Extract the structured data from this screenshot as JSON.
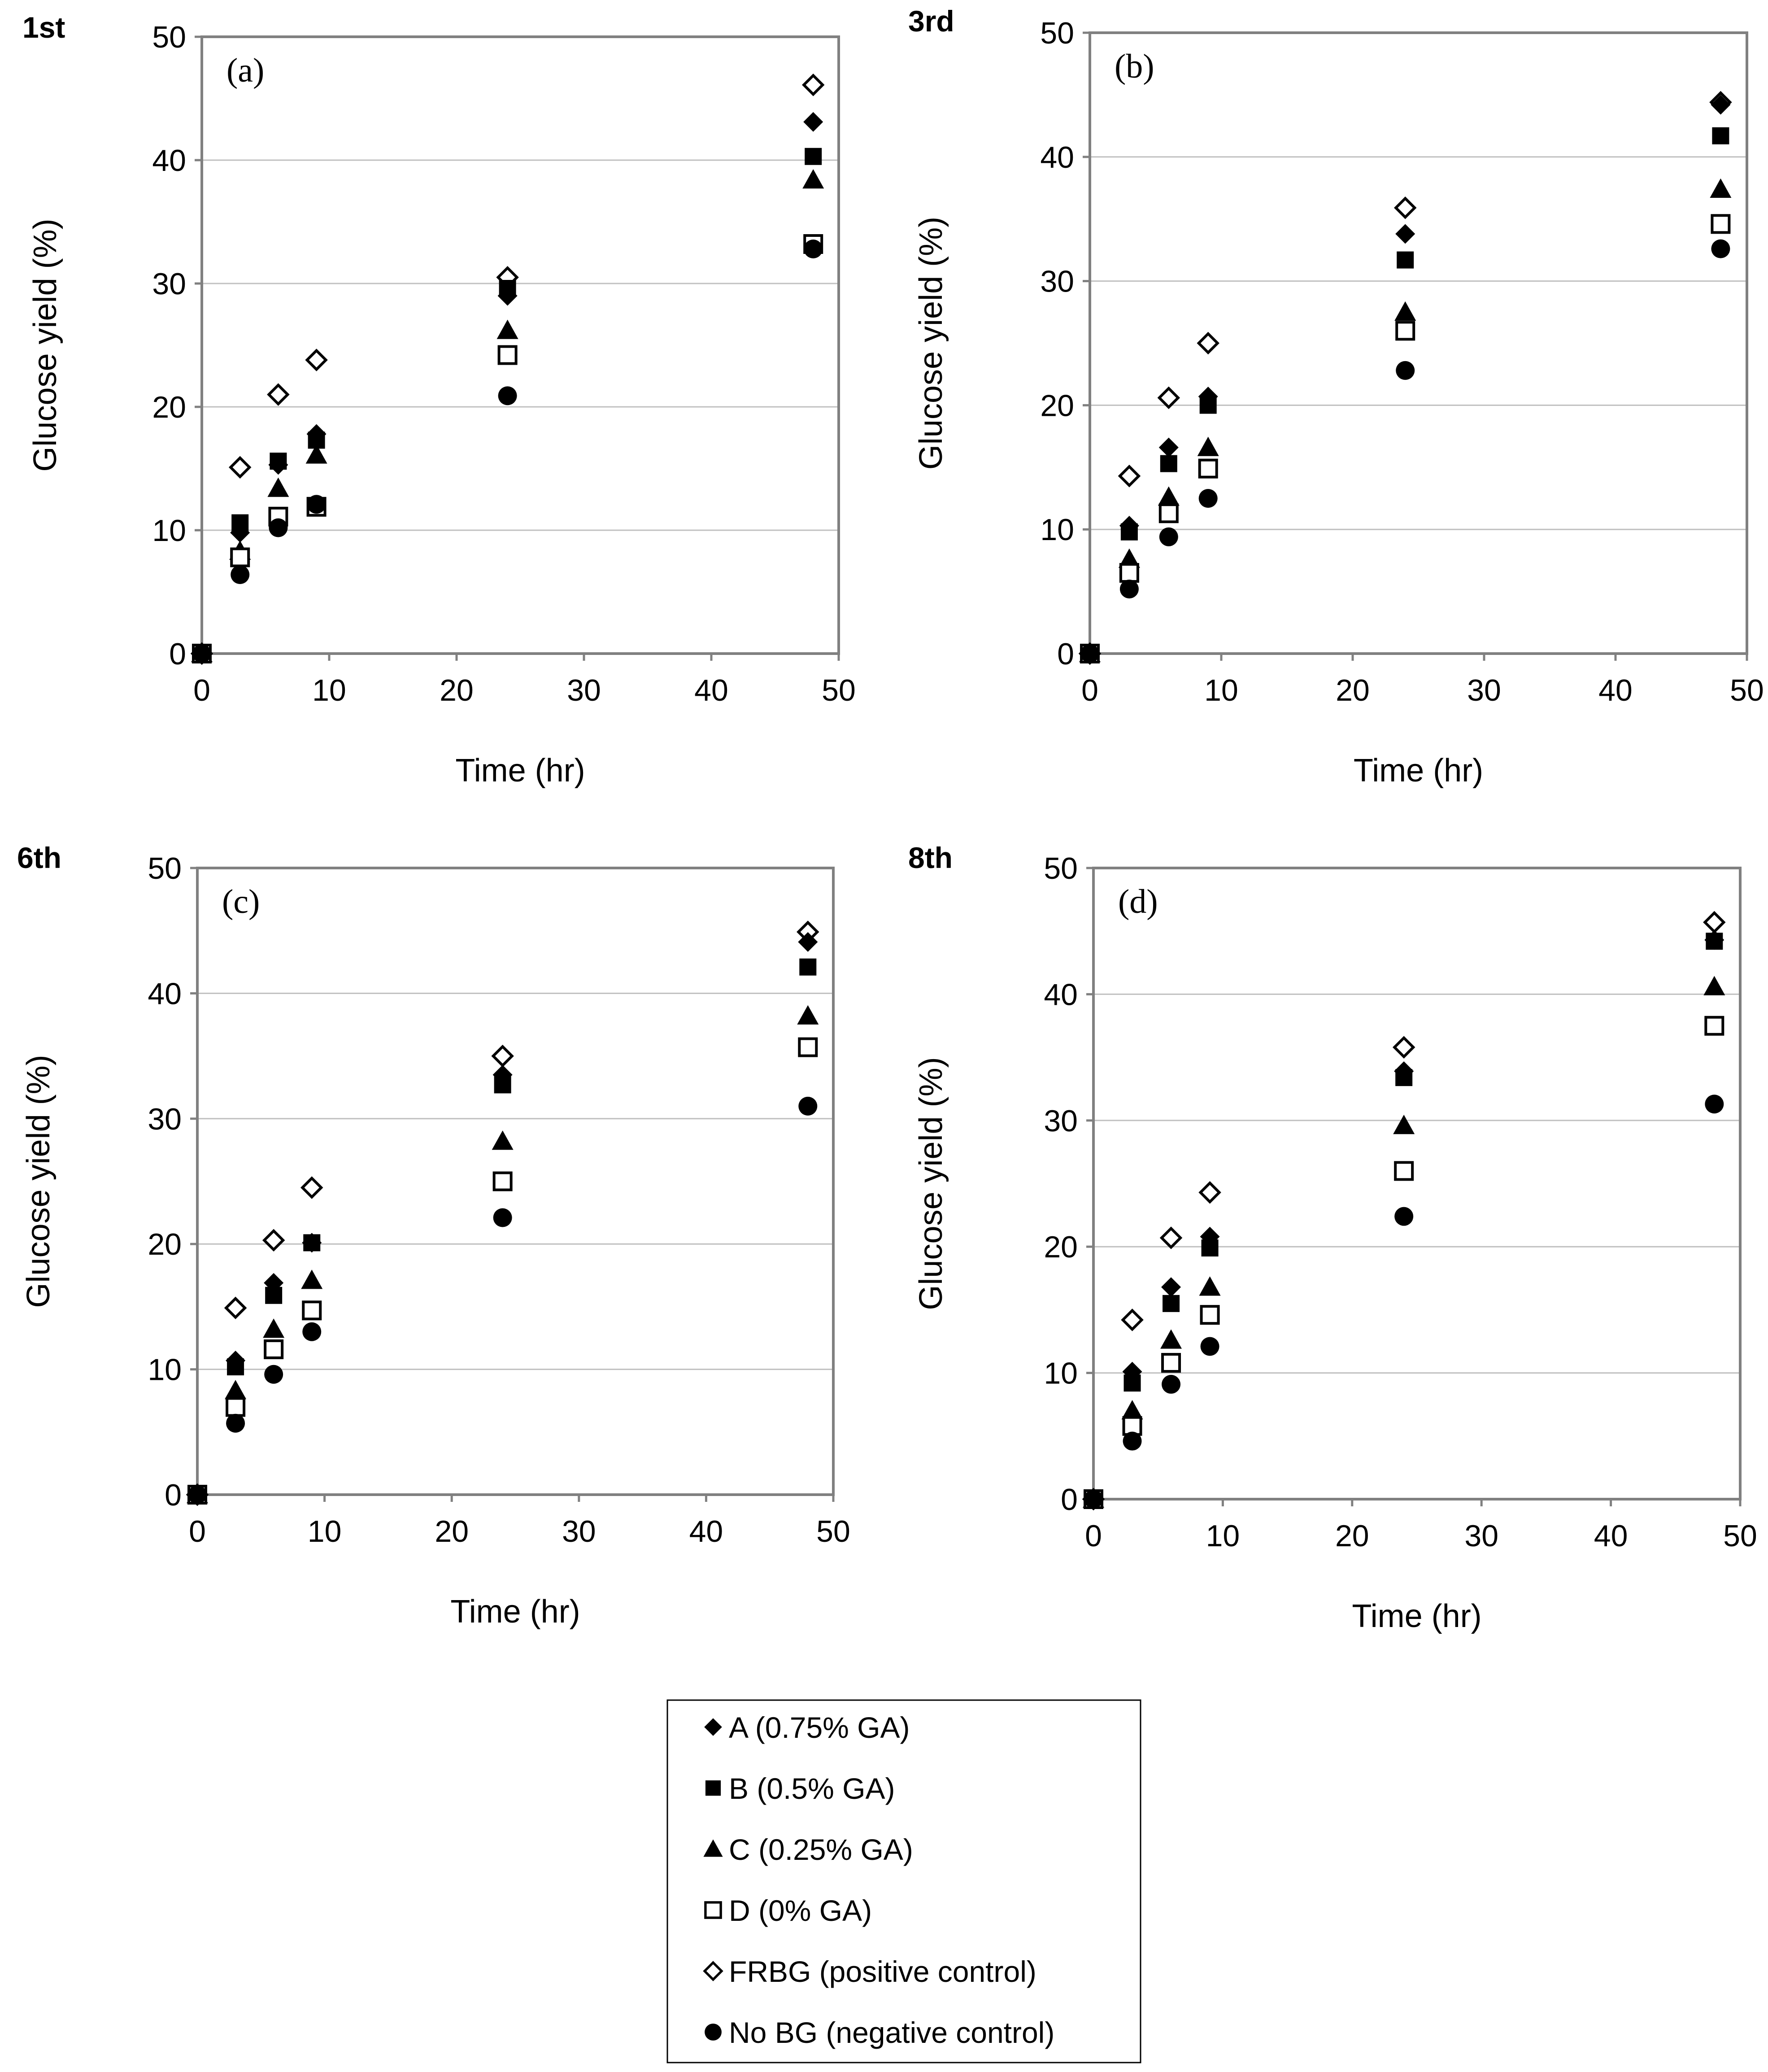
{
  "figure": {
    "name": "glucose-yield-figure"
  },
  "chart_data": [
    {
      "type": "scatter",
      "run_label": "1st",
      "panel_label": "(a)",
      "xlabel": "Time (hr)",
      "ylabel": "Glucose yield (%)",
      "xlim": [
        0,
        50
      ],
      "ylim": [
        0,
        50
      ],
      "xticks": [
        "0",
        "10",
        "20",
        "30",
        "40",
        "50"
      ],
      "yticks": [
        "0",
        "10",
        "20",
        "30",
        "40",
        "50"
      ],
      "grid": "horizontal",
      "x": [
        0,
        3,
        6,
        9,
        24,
        48
      ],
      "series": [
        {
          "key": "A",
          "values": [
            0,
            9.8,
            15.3,
            17.8,
            29.0,
            43.1
          ]
        },
        {
          "key": "B",
          "values": [
            0,
            10.6,
            15.6,
            17.3,
            29.6,
            40.3
          ]
        },
        {
          "key": "C",
          "values": [
            0,
            8.3,
            13.4,
            16.1,
            26.2,
            38.4
          ]
        },
        {
          "key": "D",
          "values": [
            0,
            7.8,
            11.1,
            11.9,
            24.2,
            33.2
          ]
        },
        {
          "key": "FRBG",
          "values": [
            0,
            15.1,
            21.0,
            23.8,
            30.5,
            46.1
          ]
        },
        {
          "key": "NoBG",
          "values": [
            0,
            6.4,
            10.2,
            12.1,
            20.9,
            32.8
          ]
        }
      ]
    },
    {
      "type": "scatter",
      "run_label": "3rd",
      "panel_label": "(b)",
      "xlabel": "Time (hr)",
      "ylabel": "Glucose yield (%)",
      "xlim": [
        0,
        50
      ],
      "ylim": [
        0,
        50
      ],
      "xticks": [
        "0",
        "10",
        "20",
        "30",
        "40",
        "50"
      ],
      "yticks": [
        "0",
        "10",
        "20",
        "30",
        "40",
        "50"
      ],
      "grid": "horizontal",
      "x": [
        0,
        3,
        6,
        9,
        24,
        48
      ],
      "series": [
        {
          "key": "A",
          "values": [
            0,
            10.3,
            16.6,
            20.7,
            33.8,
            44.2
          ]
        },
        {
          "key": "B",
          "values": [
            0,
            9.8,
            15.3,
            20.0,
            31.7,
            41.7
          ]
        },
        {
          "key": "C",
          "values": [
            0,
            7.6,
            12.6,
            16.6,
            27.5,
            37.4
          ]
        },
        {
          "key": "D",
          "values": [
            0,
            6.5,
            11.3,
            14.9,
            26.0,
            34.6
          ]
        },
        {
          "key": "FRBG",
          "values": [
            0,
            14.3,
            20.6,
            25.0,
            35.9,
            44.4
          ]
        },
        {
          "key": "NoBG",
          "values": [
            0,
            5.2,
            9.4,
            12.5,
            22.8,
            32.6
          ]
        }
      ]
    },
    {
      "type": "scatter",
      "run_label": "6th",
      "panel_label": "(c)",
      "xlabel": "Time (hr)",
      "ylabel": "Glucose yield (%)",
      "xlim": [
        0,
        50
      ],
      "ylim": [
        0,
        50
      ],
      "xticks": [
        "0",
        "10",
        "20",
        "30",
        "40",
        "50"
      ],
      "yticks": [
        "0",
        "10",
        "20",
        "30",
        "40",
        "50"
      ],
      "grid": "horizontal",
      "x": [
        0,
        3,
        6,
        9,
        24,
        48
      ],
      "series": [
        {
          "key": "A",
          "values": [
            0,
            10.7,
            16.9,
            20.1,
            33.5,
            44.1
          ]
        },
        {
          "key": "B",
          "values": [
            0,
            10.2,
            15.9,
            20.1,
            32.7,
            42.1
          ]
        },
        {
          "key": "C",
          "values": [
            0,
            8.3,
            13.2,
            17.1,
            28.2,
            38.2
          ]
        },
        {
          "key": "D",
          "values": [
            0,
            7.0,
            11.6,
            14.7,
            25.0,
            35.7
          ]
        },
        {
          "key": "FRBG",
          "values": [
            0,
            14.9,
            20.3,
            24.5,
            35.0,
            44.9
          ]
        },
        {
          "key": "NoBG",
          "values": [
            0,
            5.7,
            9.6,
            13.0,
            22.1,
            31.0
          ]
        }
      ]
    },
    {
      "type": "scatter",
      "run_label": "8th",
      "panel_label": "(d)",
      "xlabel": "Time (hr)",
      "ylabel": "Glucose yield (%)",
      "xlim": [
        0,
        50
      ],
      "ylim": [
        0,
        50
      ],
      "xticks": [
        "0",
        "10",
        "20",
        "30",
        "40",
        "50"
      ],
      "yticks": [
        "0",
        "10",
        "20",
        "30",
        "40",
        "50"
      ],
      "grid": "horizontal",
      "x": [
        0,
        3,
        6,
        9,
        24,
        48
      ],
      "series": [
        {
          "key": "A",
          "values": [
            0,
            10.1,
            16.8,
            20.8,
            33.9,
            44.3
          ]
        },
        {
          "key": "B",
          "values": [
            0,
            9.2,
            15.5,
            19.9,
            33.4,
            44.2
          ]
        },
        {
          "key": "C",
          "values": [
            0,
            7.0,
            12.6,
            16.8,
            29.6,
            40.6
          ]
        },
        {
          "key": "D",
          "values": [
            0,
            5.8,
            10.8,
            14.6,
            26.0,
            37.5
          ]
        },
        {
          "key": "FRBG",
          "values": [
            0,
            14.2,
            20.7,
            24.3,
            35.8,
            45.7
          ]
        },
        {
          "key": "NoBG",
          "values": [
            0,
            4.6,
            9.1,
            12.1,
            22.4,
            31.3
          ]
        }
      ]
    }
  ],
  "legend": {
    "placement": "bottom-center",
    "entries": [
      {
        "key": "A",
        "label": "A (0.75% GA)",
        "marker": "diamond-filled"
      },
      {
        "key": "B",
        "label": "B (0.5% GA)",
        "marker": "square-filled"
      },
      {
        "key": "C",
        "label": "C (0.25% GA)",
        "marker": "triangle-filled"
      },
      {
        "key": "D",
        "label": "D (0% GA)",
        "marker": "square-open"
      },
      {
        "key": "FRBG",
        "label": "FRBG (positive control)",
        "marker": "diamond-open"
      },
      {
        "key": "NoBG",
        "label": "No BG (negative control)",
        "marker": "circle-filled"
      }
    ]
  },
  "colors": {
    "axis": "#808080",
    "grid": "#c0c0c0",
    "marker": "#000000",
    "background": "#ffffff"
  }
}
